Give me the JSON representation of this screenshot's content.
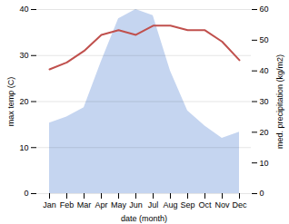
{
  "chart_data": {
    "type": "line",
    "categories": [
      "Jan",
      "Feb",
      "Mar",
      "Apr",
      "May",
      "Jun",
      "Jul",
      "Aug",
      "Sep",
      "Oct",
      "Nov",
      "Dec"
    ],
    "series": [
      {
        "type": "area",
        "axis": "y2",
        "color": "#c5d5f0",
        "values": [
          23,
          25,
          28,
          43,
          57,
          60,
          58,
          40,
          27,
          22,
          18,
          20
        ]
      },
      {
        "type": "line",
        "color": "#c0504d",
        "values": [
          27,
          28.5,
          31,
          34.5,
          35.5,
          34.5,
          36.5,
          36.5,
          35.5,
          35.5,
          33,
          29
        ]
      }
    ],
    "xlabel": "date (month)",
    "ylabel": "max temp (C)",
    "y2label": "med. precipitation (kg/m2)",
    "ylim": [
      0,
      40
    ],
    "yticks": [
      0,
      10,
      20,
      30,
      40
    ],
    "y2lim": [
      0,
      60
    ],
    "y2ticks": [
      0,
      10,
      20,
      30,
      40,
      50,
      60
    ],
    "grid": true
  }
}
